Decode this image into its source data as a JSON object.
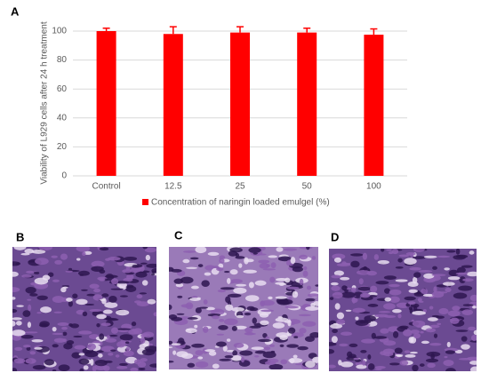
{
  "chart_data": {
    "type": "bar",
    "panel_label": "A",
    "y_label": "Viability of L929 cells after 24 h treatment",
    "categories": [
      "Control",
      "12.5",
      "25",
      "50",
      "100"
    ],
    "series": [
      {
        "name": "Concentration of naringin loaded emulgel (%)",
        "color": "#ff0000",
        "values": [
          100,
          98,
          99,
          99,
          97.5
        ],
        "errors": [
          2,
          5,
          4,
          3,
          4
        ]
      }
    ],
    "ylim": [
      0,
      100
    ],
    "yticks": [
      0,
      20,
      40,
      60,
      80,
      100
    ],
    "grid": true,
    "legend": "bottom"
  },
  "image_panels": [
    {
      "label": "B"
    },
    {
      "label": "C"
    },
    {
      "label": "D"
    }
  ]
}
